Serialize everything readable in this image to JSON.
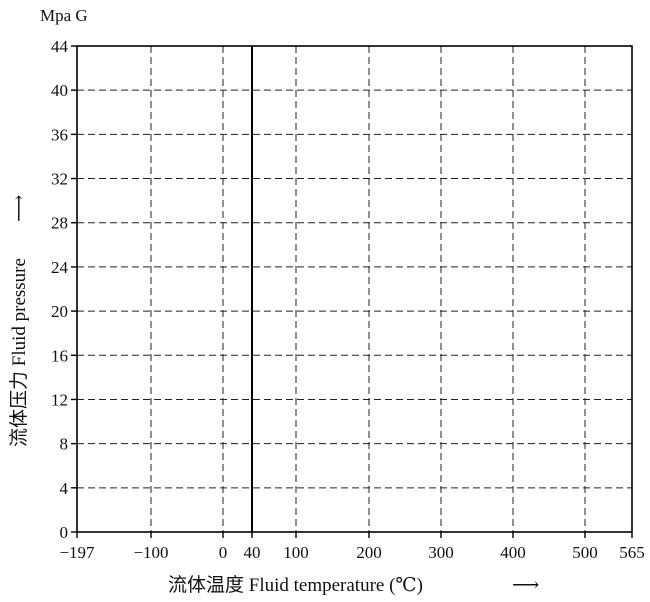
{
  "chart_data": {
    "type": "line",
    "title": "",
    "unit_label": "Mpa G",
    "xlabel": "流体温度  Fluid temperature (℃)",
    "xlabel_arrow": "⟶",
    "ylabel": "流体压力  Fluid pressure",
    "ylabel_arrow": "⟶",
    "x_ticks": [
      -197,
      -100,
      0,
      40,
      100,
      200,
      300,
      400,
      500,
      565
    ],
    "x_tick_labels": [
      "−197",
      "−100",
      "0",
      "40",
      "100",
      "200",
      "300",
      "400",
      "500",
      "565"
    ],
    "y_ticks": [
      0,
      4,
      8,
      12,
      16,
      20,
      24,
      28,
      32,
      36,
      40,
      44
    ],
    "y_tick_labels": [
      "0",
      "4",
      "8",
      "12",
      "16",
      "20",
      "24",
      "28",
      "32",
      "36",
      "40",
      "44"
    ],
    "xlim": [
      -197,
      565
    ],
    "ylim": [
      0,
      44
    ],
    "grid": true,
    "grid_style": "dashed",
    "reference_lines": [
      {
        "x": 40
      }
    ],
    "series": []
  }
}
